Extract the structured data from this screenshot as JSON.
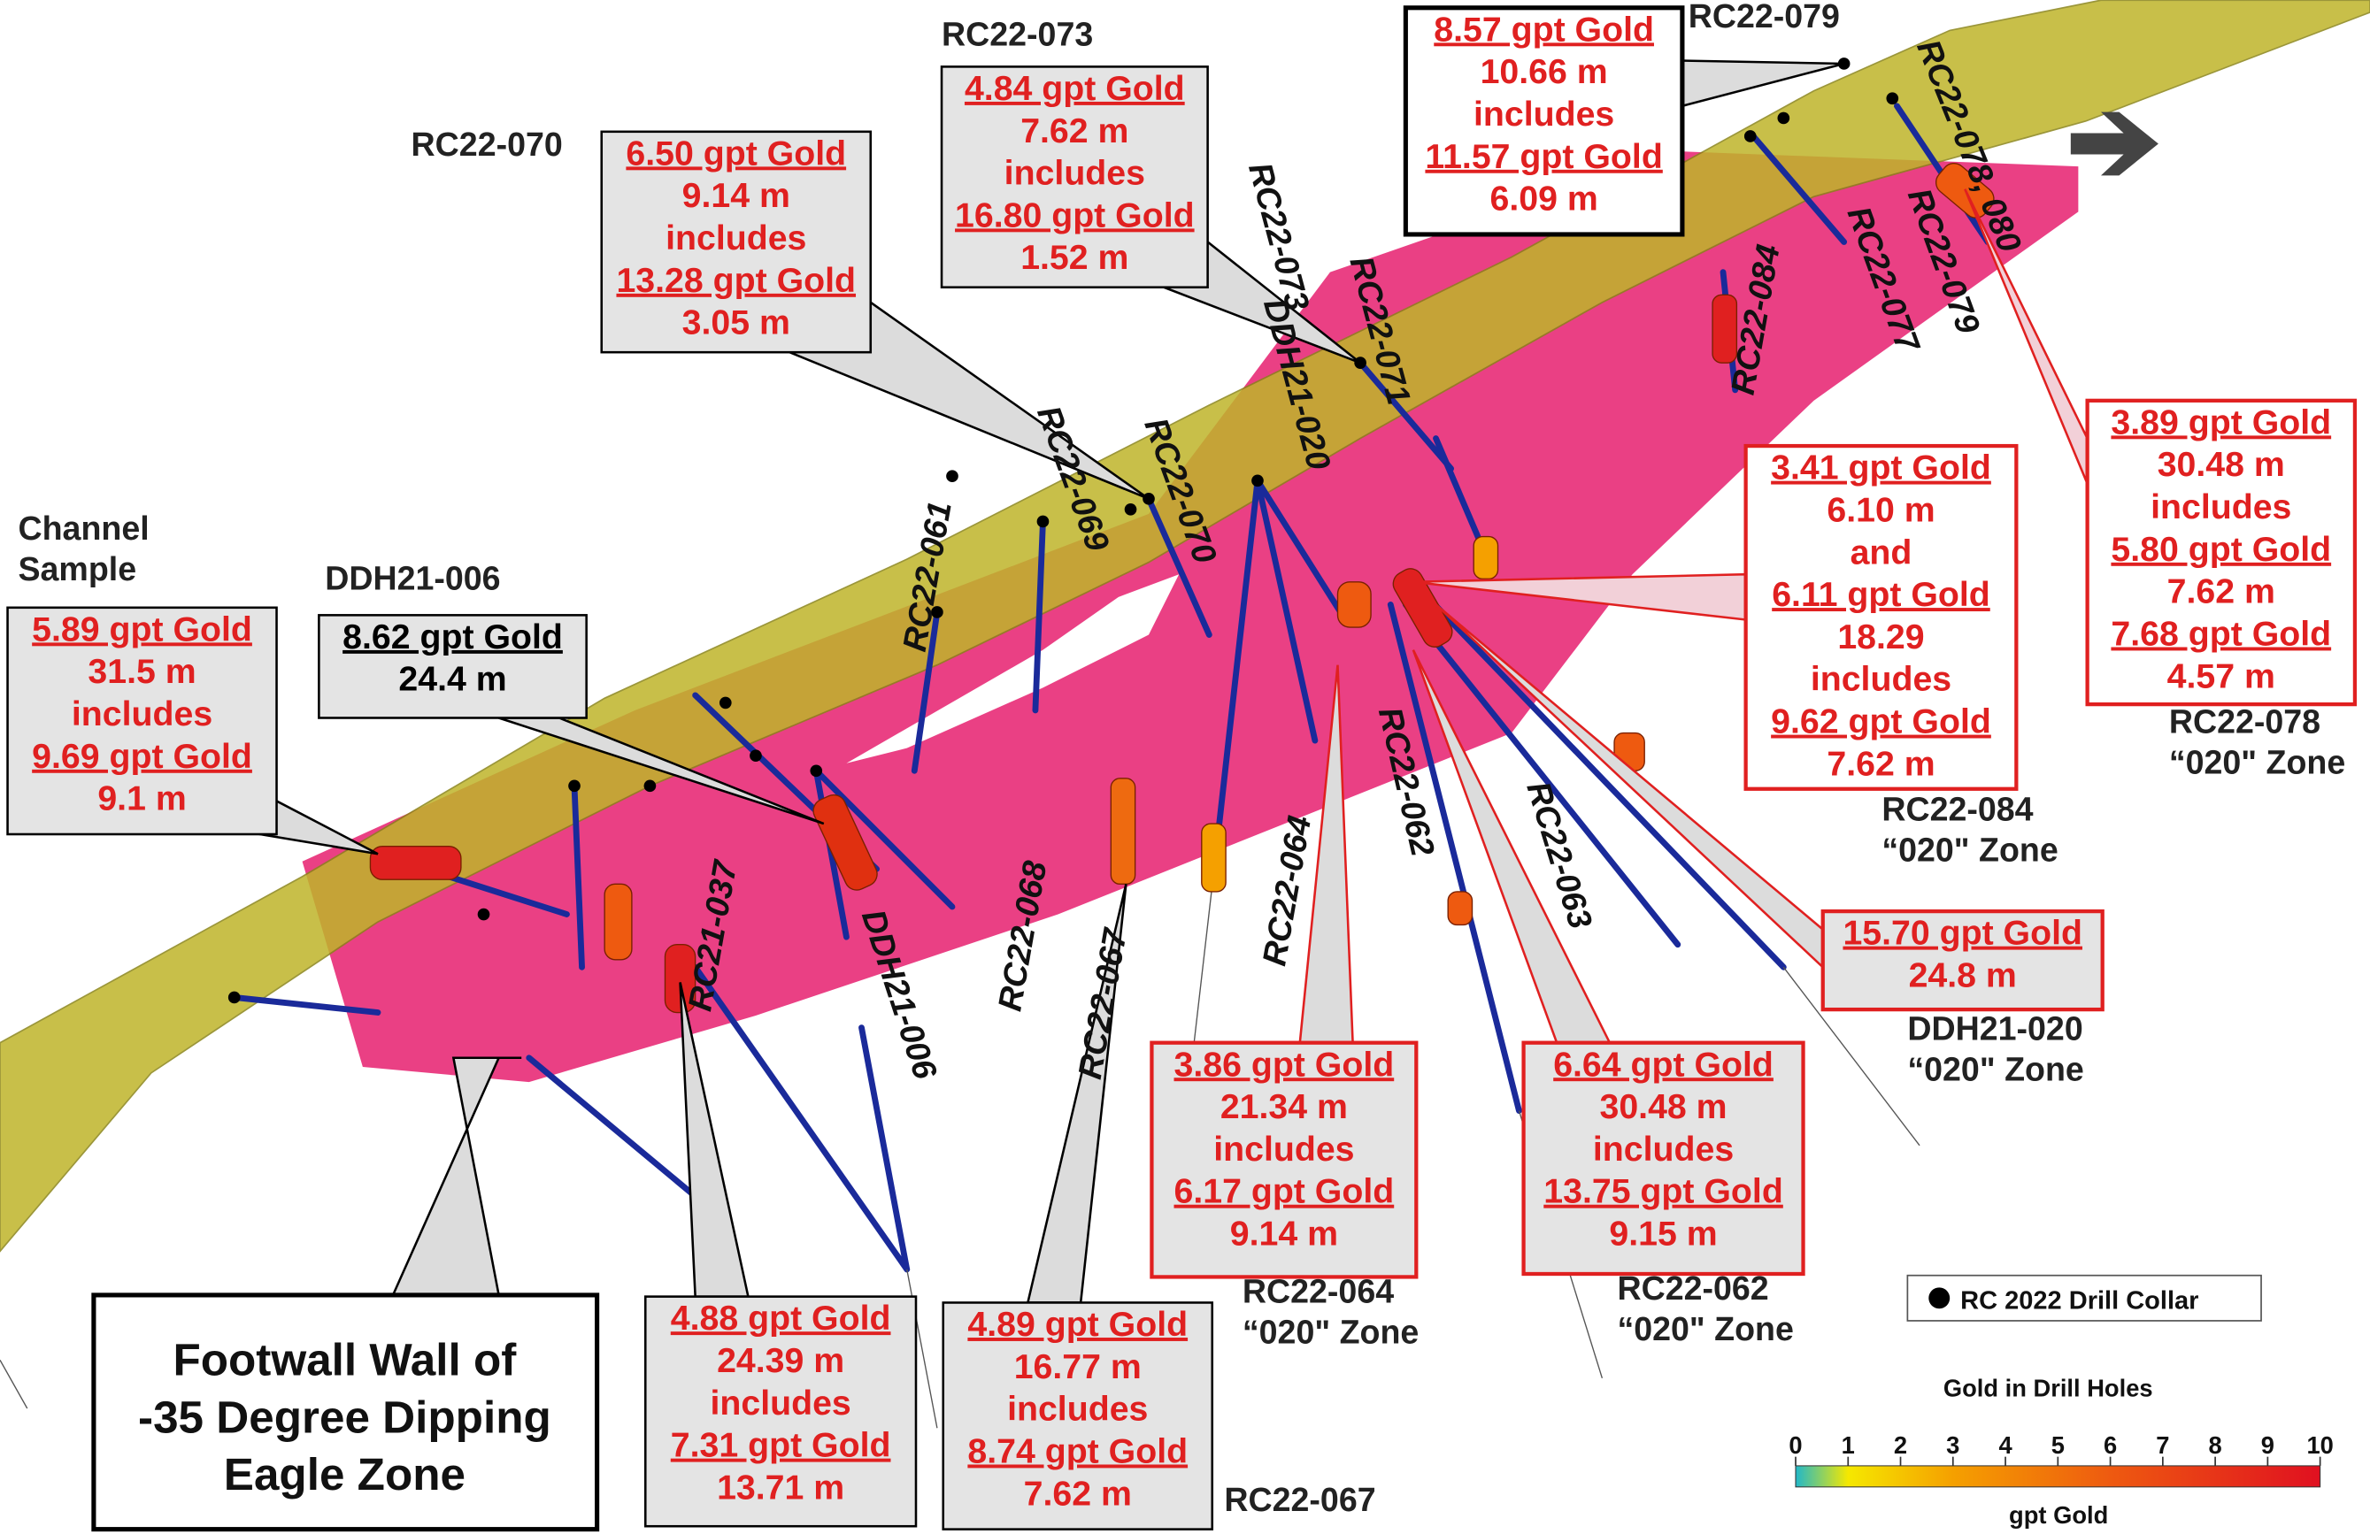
{
  "callouts": [
    {
      "label": [
        "Channel",
        "Sample"
      ],
      "lines": [
        "5.89 gpt Gold",
        "31.5 m",
        "includes",
        "9.69 gpt Gold",
        "9.1 m"
      ]
    },
    {
      "label": [
        "DDH21-006"
      ],
      "lines": [
        "8.62 gpt Gold",
        "24.4 m"
      ]
    },
    {
      "label": [
        "RC22-070"
      ],
      "lines": [
        "6.50 gpt Gold",
        "9.14 m",
        "includes",
        "13.28 gpt Gold",
        "3.05 m"
      ]
    },
    {
      "label": [
        "RC22-073"
      ],
      "lines": [
        "4.84 gpt Gold",
        "7.62 m",
        "includes",
        "16.80 gpt Gold",
        "1.52 m"
      ]
    },
    {
      "label": [
        "RC22-079"
      ],
      "lines": [
        "8.57 gpt Gold",
        "10.66 m",
        "includes",
        "11.57 gpt Gold",
        "6.09 m"
      ]
    },
    {
      "label": [
        "RC22-084",
        "“020\" Zone"
      ],
      "lines": [
        "3.41 gpt Gold",
        "6.10 m",
        "and",
        "6.11 gpt Gold",
        "18.29",
        "includes",
        "9.62 gpt Gold",
        "7.62 m"
      ]
    },
    {
      "label": [
        "RC22-078",
        "“020\" Zone"
      ],
      "lines": [
        "3.89 gpt Gold",
        "30.48 m",
        "includes",
        "5.80 gpt Gold",
        "7.62 m",
        "7.68 gpt Gold",
        "4.57 m"
      ]
    },
    {
      "label": [
        "DDH21-020",
        "“020\" Zone"
      ],
      "lines": [
        "15.70 gpt Gold",
        "24.8 m"
      ]
    },
    {
      "label": [
        "RC22-064",
        "“020\" Zone"
      ],
      "lines": [
        "3.86 gpt Gold",
        "21.34 m",
        "includes",
        "6.17 gpt Gold",
        "9.14 m"
      ]
    },
    {
      "label": [
        "RC22-062",
        "“020\" Zone"
      ],
      "lines": [
        "6.64 gpt Gold",
        "30.48 m",
        "includes",
        "13.75 gpt Gold",
        "9.15 m"
      ]
    },
    {
      "lines": [
        "4.88 gpt Gold",
        "24.39 m",
        "includes",
        "7.31 gpt Gold",
        "13.71 m"
      ]
    },
    {
      "label": [
        "RC22-067"
      ],
      "lines": [
        "4.89 gpt Gold",
        "16.77 m",
        "includes",
        "8.74 gpt Gold",
        "7.62 m"
      ]
    }
  ],
  "hole_labels": [
    "RC22-061",
    "RC22-069",
    "RC22-070",
    "RC22-073",
    "RC22-071",
    "DDH21-020",
    "RC22-084",
    "RC22-077",
    "RC22-079",
    "RC22-078, 080",
    "RC21-037",
    "DDH21-006",
    "RC22-068",
    "RC22-067",
    "RC22-064",
    "RC22-062",
    "RC22-063"
  ],
  "footwall": {
    "lines": [
      "Footwall Wall of",
      "-35 Degree Dipping",
      "Eagle Zone"
    ]
  },
  "legend": {
    "collar": "RC 2022 Drill Collar",
    "title": "Gold in Drill Holes",
    "scale_ticks": [
      0,
      1,
      2,
      3,
      4,
      5,
      6,
      7,
      8,
      9,
      10
    ],
    "unit": "gpt Gold"
  }
}
